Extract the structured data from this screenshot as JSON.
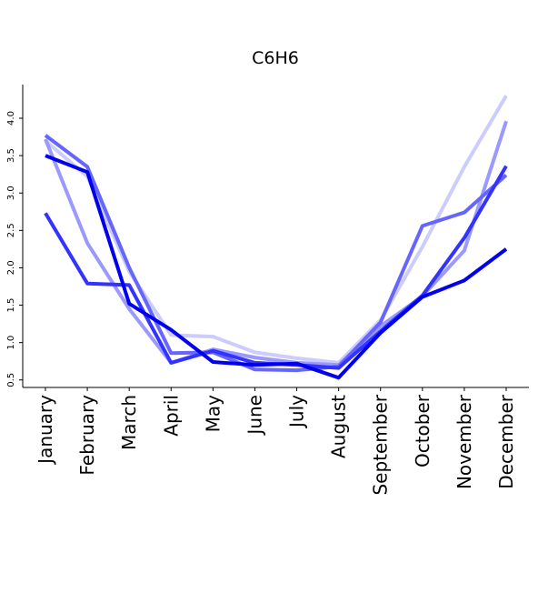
{
  "chart_data": {
    "type": "line",
    "title": "C6H6",
    "xlabel": "",
    "ylabel": "",
    "categories": [
      "January",
      "February",
      "March",
      "April",
      "May",
      "June",
      "July",
      "August",
      "September",
      "October",
      "November",
      "December"
    ],
    "yticks": [
      "0.5",
      "1.0",
      "1.5",
      "2.0",
      "2.5",
      "3.0",
      "3.5",
      "4.0"
    ],
    "ylim": [
      0.4,
      4.45
    ],
    "grid": false,
    "legend": "none",
    "series": [
      {
        "color": "#ccccff",
        "values": [
          3.7,
          3.22,
          1.95,
          1.1,
          1.08,
          0.87,
          0.79,
          0.73,
          1.3,
          2.28,
          3.35,
          4.3
        ]
      },
      {
        "color": "#9999ff",
        "values": [
          3.72,
          2.33,
          1.45,
          0.73,
          0.91,
          0.8,
          0.73,
          0.7,
          1.22,
          1.62,
          2.23,
          3.96
        ]
      },
      {
        "color": "#6666ff",
        "values": [
          3.77,
          3.35,
          2.0,
          0.86,
          0.87,
          0.64,
          0.63,
          0.68,
          1.27,
          2.56,
          2.74,
          3.24
        ]
      },
      {
        "color": "#3333ff",
        "values": [
          2.73,
          1.79,
          1.77,
          0.73,
          0.89,
          0.73,
          0.7,
          0.66,
          1.15,
          1.63,
          2.4,
          3.36
        ]
      },
      {
        "color": "#0000ee",
        "values": [
          3.5,
          3.28,
          1.52,
          1.17,
          0.74,
          0.7,
          0.72,
          0.53,
          1.13,
          1.61,
          1.83,
          2.25
        ]
      }
    ]
  }
}
